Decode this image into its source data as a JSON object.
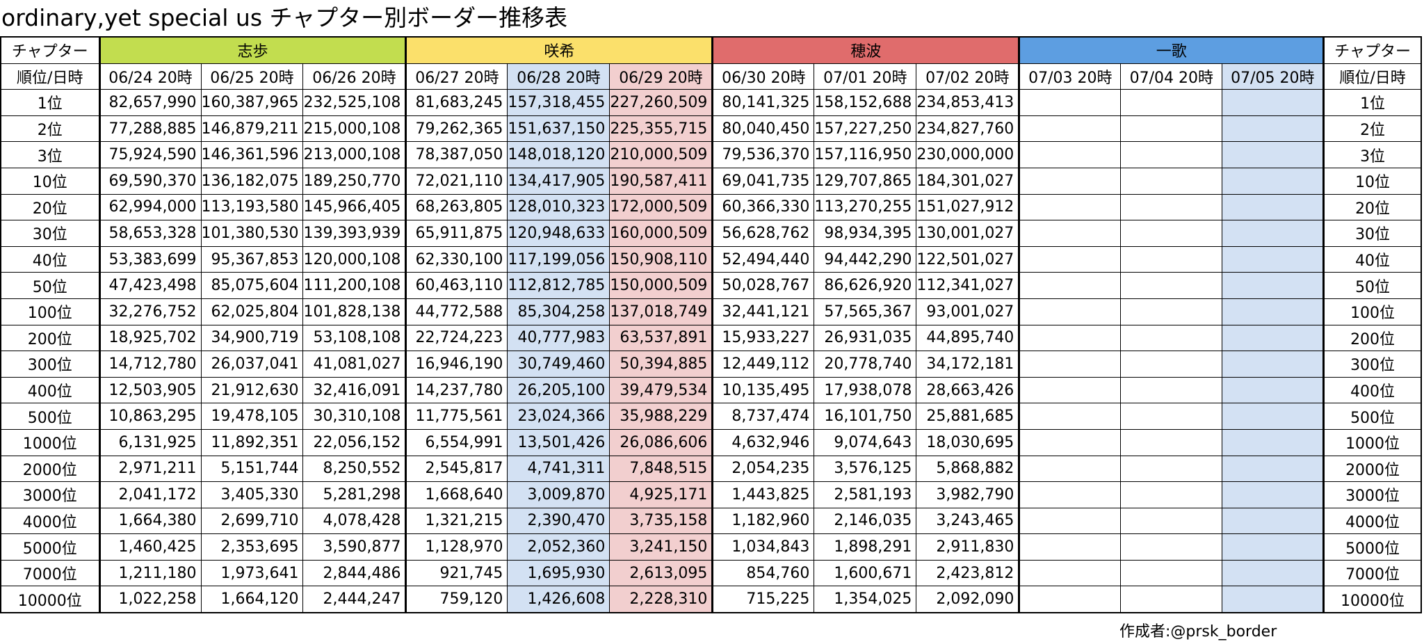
{
  "title": "ordinary,yet special us チャプター別ボーダー推移表",
  "header": {
    "chapter_label": "チャプター",
    "rank_date_label": "順位/日時",
    "groups": [
      "志歩",
      "咲希",
      "穂波",
      "一歌"
    ],
    "dates": [
      "06/24 20時",
      "06/25 20時",
      "06/26 20時",
      "06/27 20時",
      "06/28 20時",
      "06/29 20時",
      "06/30 20時",
      "07/01 20時",
      "07/02 20時",
      "07/03 20時",
      "07/04 20時",
      "07/05 20時"
    ]
  },
  "colors": {
    "shiho": "#c2dd4f",
    "saki": "#fbe06b",
    "honami": "#e06c6c",
    "ichika": "#5d9ee1",
    "highlight_blue": "#d3e1f3",
    "highlight_pink": "#f2cfcf"
  },
  "rows": [
    {
      "rank": "1位",
      "values": [
        "82,657,990",
        "160,387,965",
        "232,525,108",
        "81,683,245",
        "157,318,455",
        "227,260,509",
        "80,141,325",
        "158,152,688",
        "234,853,413",
        "",
        "",
        ""
      ]
    },
    {
      "rank": "2位",
      "values": [
        "77,288,885",
        "146,879,211",
        "215,000,108",
        "79,262,365",
        "151,637,150",
        "225,355,715",
        "80,040,450",
        "157,227,250",
        "234,827,760",
        "",
        "",
        ""
      ]
    },
    {
      "rank": "3位",
      "values": [
        "75,924,590",
        "146,361,596",
        "213,000,108",
        "78,387,050",
        "148,018,120",
        "210,000,509",
        "79,536,370",
        "157,116,950",
        "230,000,000",
        "",
        "",
        ""
      ]
    },
    {
      "rank": "10位",
      "values": [
        "69,590,370",
        "136,182,075",
        "189,250,770",
        "72,021,110",
        "134,417,905",
        "190,587,411",
        "69,041,735",
        "129,707,865",
        "184,301,027",
        "",
        "",
        ""
      ]
    },
    {
      "rank": "20位",
      "values": [
        "62,994,000",
        "113,193,580",
        "145,966,405",
        "68,263,805",
        "128,010,323",
        "172,000,509",
        "60,366,330",
        "113,270,255",
        "151,027,912",
        "",
        "",
        ""
      ]
    },
    {
      "rank": "30位",
      "values": [
        "58,653,328",
        "101,380,530",
        "139,393,939",
        "65,911,875",
        "120,948,633",
        "160,000,509",
        "56,628,762",
        "98,934,395",
        "130,001,027",
        "",
        "",
        ""
      ]
    },
    {
      "rank": "40位",
      "values": [
        "53,383,699",
        "95,367,853",
        "120,000,108",
        "62,330,100",
        "117,199,056",
        "150,908,110",
        "52,494,440",
        "94,442,290",
        "122,501,027",
        "",
        "",
        ""
      ]
    },
    {
      "rank": "50位",
      "values": [
        "47,423,498",
        "85,075,604",
        "111,200,108",
        "60,463,110",
        "112,812,785",
        "150,000,509",
        "50,028,767",
        "86,626,920",
        "112,341,027",
        "",
        "",
        ""
      ]
    },
    {
      "rank": "100位",
      "values": [
        "32,276,752",
        "62,025,804",
        "101,828,138",
        "44,772,588",
        "85,304,258",
        "137,018,749",
        "32,441,121",
        "57,565,367",
        "93,001,027",
        "",
        "",
        ""
      ]
    },
    {
      "rank": "200位",
      "values": [
        "18,925,702",
        "34,900,719",
        "53,108,108",
        "22,724,223",
        "40,777,983",
        "63,537,891",
        "15,933,227",
        "26,931,035",
        "44,895,740",
        "",
        "",
        ""
      ]
    },
    {
      "rank": "300位",
      "values": [
        "14,712,780",
        "26,037,041",
        "41,081,027",
        "16,946,190",
        "30,749,460",
        "50,394,885",
        "12,449,112",
        "20,778,740",
        "34,172,181",
        "",
        "",
        ""
      ]
    },
    {
      "rank": "400位",
      "values": [
        "12,503,905",
        "21,912,630",
        "32,416,091",
        "14,237,780",
        "26,205,100",
        "39,479,534",
        "10,135,495",
        "17,938,078",
        "28,663,426",
        "",
        "",
        ""
      ]
    },
    {
      "rank": "500位",
      "values": [
        "10,863,295",
        "19,478,105",
        "30,310,108",
        "11,775,561",
        "23,024,366",
        "35,988,229",
        "8,737,474",
        "16,101,750",
        "25,881,685",
        "",
        "",
        ""
      ]
    },
    {
      "rank": "1000位",
      "values": [
        "6,131,925",
        "11,892,351",
        "22,056,152",
        "6,554,991",
        "13,501,426",
        "26,086,606",
        "4,632,946",
        "9,074,643",
        "18,030,695",
        "",
        "",
        ""
      ]
    },
    {
      "rank": "2000位",
      "values": [
        "2,971,211",
        "5,151,744",
        "8,250,552",
        "2,545,817",
        "4,741,311",
        "7,848,515",
        "2,054,235",
        "3,576,125",
        "5,868,882",
        "",
        "",
        ""
      ]
    },
    {
      "rank": "3000位",
      "values": [
        "2,041,172",
        "3,405,330",
        "5,281,298",
        "1,668,640",
        "3,009,870",
        "4,925,171",
        "1,443,825",
        "2,581,193",
        "3,982,790",
        "",
        "",
        ""
      ]
    },
    {
      "rank": "4000位",
      "values": [
        "1,664,380",
        "2,699,710",
        "4,078,428",
        "1,321,215",
        "2,390,470",
        "3,735,158",
        "1,182,960",
        "2,146,035",
        "3,243,465",
        "",
        "",
        ""
      ]
    },
    {
      "rank": "5000位",
      "values": [
        "1,460,425",
        "2,353,695",
        "3,590,877",
        "1,128,970",
        "2,052,360",
        "3,241,150",
        "1,034,843",
        "1,898,291",
        "2,911,830",
        "",
        "",
        ""
      ]
    },
    {
      "rank": "7000位",
      "values": [
        "1,211,180",
        "1,973,641",
        "2,844,486",
        "921,745",
        "1,695,930",
        "2,613,095",
        "854,760",
        "1,600,671",
        "2,423,812",
        "",
        "",
        ""
      ]
    },
    {
      "rank": "10000位",
      "values": [
        "1,022,258",
        "1,664,120",
        "2,444,247",
        "759,120",
        "1,426,608",
        "2,228,310",
        "715,225",
        "1,354,025",
        "2,092,090",
        "",
        "",
        ""
      ]
    }
  ],
  "footer": "作成者:@prsk_border"
}
